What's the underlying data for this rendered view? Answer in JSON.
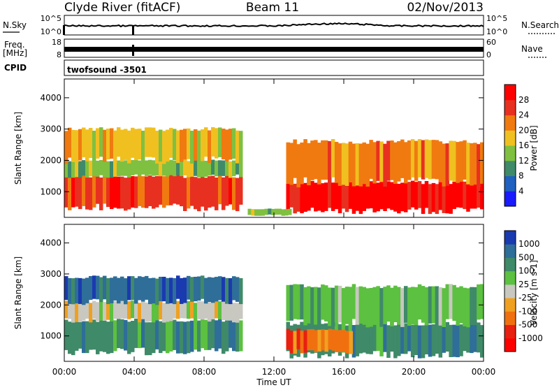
{
  "header": {
    "station": "Clyde River (fitACF)",
    "beam": "Beam 11",
    "date": "02/Nov/2013"
  },
  "top_panels": {
    "nsky_label": "N.Sky",
    "nsky_ticks": [
      "10^5",
      "10^0"
    ],
    "nsearch_label": "N.Search",
    "nsearch_ticks": [
      "10^5",
      "10^0"
    ],
    "freq_label_1": "Freq.",
    "freq_label_2": "[MHz]",
    "freq_ticks": [
      "18",
      "8"
    ],
    "nave_label": "Nave",
    "nave_ticks": [
      "60",
      "0"
    ],
    "cpid_label": "CPID",
    "cpid_text": "twofsound  -3501"
  },
  "chart_data": [
    {
      "type": "heatmap",
      "panel": "power",
      "xlabel": "Time UT",
      "ylabel": "Slant Range [km]",
      "x_ticks": [
        "00:00",
        "04:00",
        "08:00",
        "12:00",
        "16:00",
        "20:00",
        "00:00"
      ],
      "x_range_hours": [
        0,
        24
      ],
      "y_ticks": [
        1000,
        2000,
        3000,
        4000
      ],
      "ylim": [
        180,
        4600
      ],
      "colorbar_label": "Power [dB]",
      "colorbar_ticks": [
        "4",
        "8",
        "12",
        "16",
        "20",
        "24",
        "28"
      ],
      "colors": [
        "#1a1aff",
        "#2060c0",
        "#3f8a68",
        "#7fc040",
        "#f0c020",
        "#f07a10",
        "#e83020",
        "#ff0000"
      ],
      "bands": [
        {
          "t0": 0.0,
          "t1": 10.2,
          "r0": 500,
          "r1": 1500,
          "level": 6
        },
        {
          "t0": 0.0,
          "t1": 10.2,
          "r0": 1500,
          "r1": 2000,
          "level": 3
        },
        {
          "t0": 0.0,
          "t1": 10.2,
          "r0": 2000,
          "r1": 3000,
          "level": 4
        },
        {
          "t0": 12.7,
          "t1": 24.0,
          "r0": 400,
          "r1": 1300,
          "level": 7
        },
        {
          "t0": 12.7,
          "t1": 24.0,
          "r0": 1300,
          "r1": 2600,
          "level": 5
        },
        {
          "t0": 10.5,
          "t1": 13.0,
          "r0": 250,
          "r1": 450,
          "level": 3
        }
      ]
    },
    {
      "type": "heatmap",
      "panel": "velocity",
      "xlabel": "Time UT",
      "ylabel": "Slant Range [km]",
      "x_ticks": [
        "00:00",
        "04:00",
        "08:00",
        "12:00",
        "16:00",
        "20:00",
        "00:00"
      ],
      "x_range_hours": [
        0,
        24
      ],
      "y_ticks": [
        1000,
        2000,
        3000,
        4000
      ],
      "ylim": [
        180,
        4600
      ],
      "colorbar_label": "Velocity [m s-1]",
      "colorbar_ticks": [
        "1000",
        "500",
        "100",
        "25",
        "-25",
        "-100",
        "-500",
        "-1000"
      ],
      "colors": [
        "#1a3ab0",
        "#2e6e98",
        "#3f8a68",
        "#5cc040",
        "#c8c8c0",
        "#f0a020",
        "#f07010",
        "#e82010",
        "#ff0000"
      ],
      "bands": [
        {
          "t0": 0.0,
          "t1": 10.2,
          "r0": 500,
          "r1": 1500,
          "level": 2
        },
        {
          "t0": 0.0,
          "t1": 10.2,
          "r0": 1500,
          "r1": 2100,
          "level": 4
        },
        {
          "t0": 0.0,
          "t1": 10.2,
          "r0": 2100,
          "r1": 2900,
          "level": 1
        },
        {
          "t0": 12.7,
          "t1": 24.0,
          "r0": 400,
          "r1": 1400,
          "level": 2
        },
        {
          "t0": 12.7,
          "t1": 16.5,
          "r0": 500,
          "r1": 1200,
          "level": 6
        },
        {
          "t0": 12.7,
          "t1": 24.0,
          "r0": 1400,
          "r1": 2600,
          "level": 3
        }
      ]
    }
  ]
}
